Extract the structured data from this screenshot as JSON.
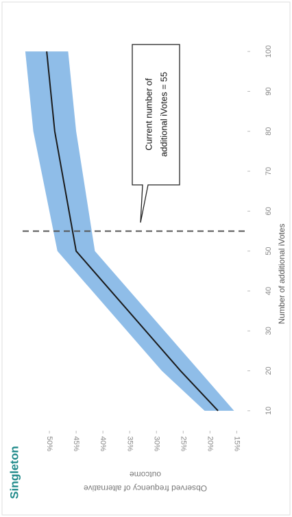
{
  "chart_data": {
    "type": "band-line",
    "title": "Singleton",
    "xlabel": "Number of additional iVotes",
    "ylabel": [
      "Observed frequency of alternative",
      "outcome"
    ],
    "x": [
      10,
      20,
      50,
      80,
      100
    ],
    "values": [
      18.5,
      25.5,
      45,
      49,
      50.5
    ],
    "color": "#1a1a1a",
    "band": {
      "upper": [
        21,
        29,
        48.5,
        53,
        54.5
      ],
      "lower": [
        15.5,
        22,
        41.5,
        45,
        46.5
      ],
      "color": "#8fbde8"
    },
    "xlim": [
      5,
      105
    ],
    "xticks": [
      10,
      20,
      30,
      40,
      50,
      60,
      70,
      80,
      90,
      100
    ],
    "ylim": [
      13,
      55
    ],
    "yticks": [
      {
        "value": 50,
        "label": "50%"
      },
      {
        "value": 45,
        "label": "45%"
      },
      {
        "value": 40,
        "label": "40%"
      },
      {
        "value": 35,
        "label": "35%"
      },
      {
        "value": 30,
        "label": "30%"
      },
      {
        "value": 25,
        "label": "25%"
      },
      {
        "value": 20,
        "label": "20%"
      },
      {
        "value": 15,
        "label": "15%"
      }
    ],
    "annotation": {
      "x": 55,
      "lines": [
        "Current number of",
        "additional iVotes = 55"
      ]
    }
  }
}
